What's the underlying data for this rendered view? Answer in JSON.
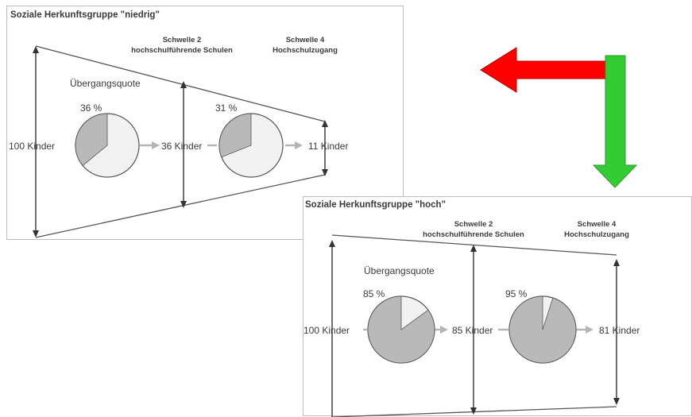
{
  "panels": [
    {
      "title": "Soziale Herkunftsgruppe \"niedrig\"",
      "threshold2": [
        "Schwelle 2",
        "hochschulführende Schulen"
      ],
      "threshold4": [
        "Schwelle 4",
        "Hochschulzugang"
      ],
      "rate_label": "Übergangsquote",
      "start_label": "100 Kinder",
      "mid_label": "36 Kinder",
      "end_label": "11 Kinder",
      "pie1_label": "36 %",
      "pie1_value": 0.36,
      "pie2_label": "31 %",
      "pie2_value": 0.31
    },
    {
      "title": "Soziale Herkunftsgruppe \"hoch\"",
      "threshold2": [
        "Schwelle 2",
        "hochschulführende Schulen"
      ],
      "threshold4": [
        "Schwelle 4",
        "Hochschulzugang"
      ],
      "rate_label": "Übergangsquote",
      "start_label": "100 Kinder",
      "mid_label": "85 Kinder",
      "end_label": "81 Kinder",
      "pie1_label": "85 %",
      "pie1_value": 0.85,
      "pie2_label": "95 %",
      "pie2_value": 0.95
    }
  ],
  "colors": {
    "pie_filled": "#b9b9b9",
    "pie_empty": "#f2f2f2",
    "red_arrow": "#ff0000",
    "green_arrow": "#33cc33"
  }
}
